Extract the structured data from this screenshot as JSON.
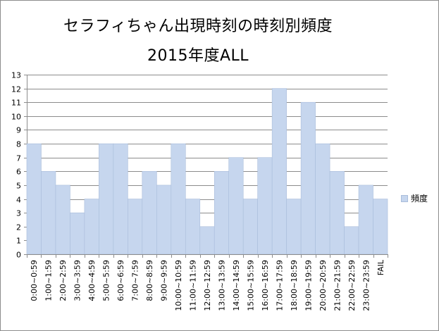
{
  "chart_data": {
    "type": "bar",
    "title": "セラフィちゃん出現時刻の時刻別頻度",
    "subtitle": "2015年度ALL",
    "categories": [
      "0:00~0:59",
      "1:00~1:59",
      "2:00~2:59",
      "3:00~3:59",
      "4:00~4:59",
      "5:00~5:59",
      "6:00~6:59",
      "7:00~7:59",
      "8:00~8:59",
      "9:00~9:59",
      "10:00~10:59",
      "11:00~11:59",
      "12:00~12:59",
      "13:00~13:59",
      "14:00~14:59",
      "15:00~15:59",
      "16:00~16:59",
      "17:00~17:59",
      "18:00~18:59",
      "19:00~19:59",
      "20:00~20:59",
      "21:00~21:59",
      "22:00~22:59",
      "23:00~23:59",
      "FAIL"
    ],
    "series": [
      {
        "name": "頻度",
        "values": [
          8,
          6,
          5,
          3,
          4,
          8,
          8,
          4,
          6,
          5,
          8,
          4,
          2,
          6,
          7,
          4,
          7,
          12,
          4,
          11,
          8,
          6,
          2,
          5,
          4
        ]
      }
    ],
    "ylim": [
      0,
      13
    ],
    "yticks": [
      0,
      1,
      2,
      3,
      4,
      5,
      6,
      7,
      8,
      9,
      10,
      11,
      12,
      13
    ],
    "grid": true,
    "legend_position": "right",
    "bar_color": "#c6d6ee",
    "bar_edge_color": "#a9bddb",
    "grid_color": "#8c8c8c"
  }
}
